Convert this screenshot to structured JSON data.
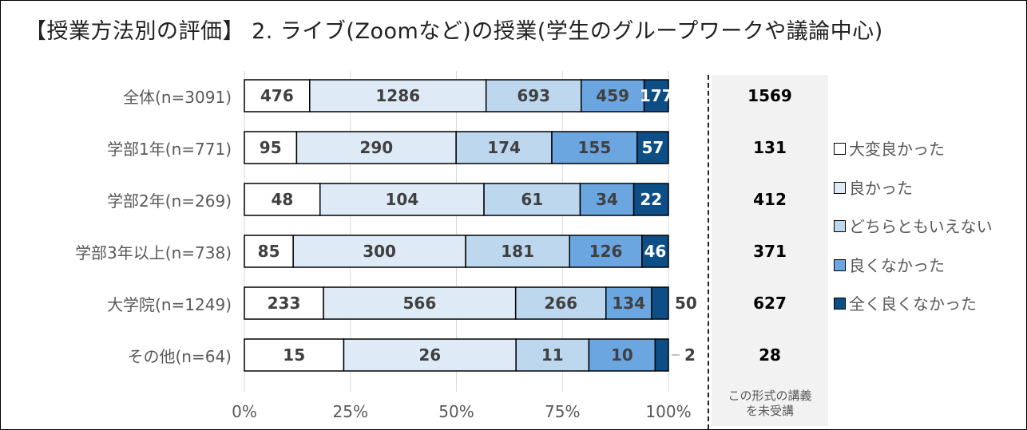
{
  "title": "【授業方法別の評価】 2. ライブ(Zoomなど)の授業(学生のグループワークや議論中心)",
  "chart_data": {
    "type": "bar",
    "orientation": "horizontal",
    "stacked": "percent",
    "categories": [
      "全体(n=3091)",
      "学部1年(n=771)",
      "学部2年(n=269)",
      "学部3年以上(n=738)",
      "大学院(n=1249)",
      "その他(n=64)"
    ],
    "series": [
      {
        "name": "大変良かった",
        "color": "#ffffff",
        "values": [
          476,
          95,
          48,
          85,
          233,
          15
        ]
      },
      {
        "name": "良かった",
        "color": "#deebf7",
        "values": [
          1286,
          290,
          104,
          300,
          566,
          26
        ]
      },
      {
        "name": "どちらともいえない",
        "color": "#bdd7ee",
        "values": [
          693,
          174,
          61,
          181,
          266,
          11
        ]
      },
      {
        "name": "良くなかった",
        "color": "#6ba6e0",
        "values": [
          459,
          155,
          34,
          126,
          134,
          10
        ]
      },
      {
        "name": "全く良くなかった",
        "color": "#0e4e87",
        "values": [
          177,
          57,
          22,
          46,
          50,
          2
        ]
      }
    ],
    "xticks": [
      "0%",
      "25%",
      "50%",
      "75%",
      "100%"
    ],
    "xlim": [
      0,
      100
    ],
    "legend": "right",
    "untaken": {
      "label": "この形式の講義を未受講",
      "label_lines": [
        "この形式の講義",
        "を未受講"
      ],
      "values": [
        1569,
        131,
        412,
        371,
        627,
        28
      ]
    }
  }
}
